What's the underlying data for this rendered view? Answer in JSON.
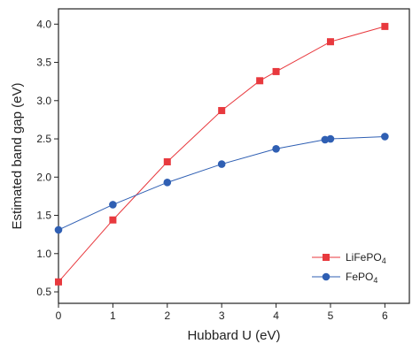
{
  "chart_data": {
    "type": "line",
    "xlabel": "Hubbard U (eV)",
    "ylabel": "Estimated band gap (eV)",
    "xlim": [
      0,
      6.45
    ],
    "ylim": [
      0.35,
      4.2
    ],
    "xticks": [
      0,
      1,
      2,
      3,
      4,
      5,
      6
    ],
    "yticks": [
      0.5,
      1.0,
      1.5,
      2.0,
      2.5,
      3.0,
      3.5,
      4.0
    ],
    "xtick_labels": [
      "0",
      "1",
      "2",
      "3",
      "4",
      "5",
      "6"
    ],
    "ytick_labels": [
      "0.5",
      "1.0",
      "1.5",
      "2.0",
      "2.5",
      "3.0",
      "3.5",
      "4.0"
    ],
    "grid": false,
    "legend_position": "bottom-right",
    "series": [
      {
        "name_main": "LiFePO",
        "name_sub": "4",
        "color": "#e8393e",
        "marker": "square",
        "x": [
          0,
          1,
          2,
          3,
          3.7,
          4,
          5,
          6
        ],
        "y": [
          0.63,
          1.44,
          2.2,
          2.87,
          3.26,
          3.38,
          3.77,
          3.97
        ]
      },
      {
        "name_main": "FePO",
        "name_sub": "4",
        "color": "#2f5fb3",
        "marker": "circle",
        "x": [
          0,
          1,
          2,
          3,
          4,
          4.9,
          5,
          6
        ],
        "y": [
          1.31,
          1.64,
          1.93,
          2.17,
          2.37,
          2.49,
          2.5,
          2.53
        ]
      }
    ]
  }
}
